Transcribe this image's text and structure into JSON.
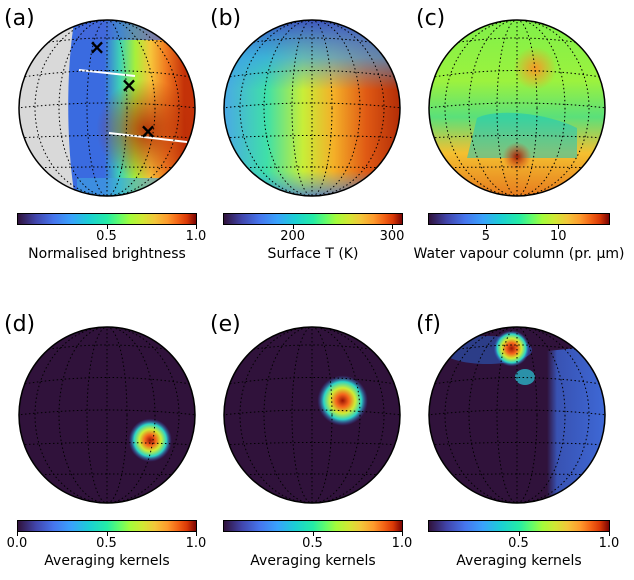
{
  "panels": {
    "a": "(a)",
    "b": "(b)",
    "c": "(c)",
    "d": "(d)",
    "e": "(e)",
    "f": "(f)"
  },
  "colorbars": {
    "a": {
      "title": "Normalised brightness",
      "ticks": [
        "0.5",
        "1.0"
      ],
      "tick_values": [
        0.5,
        1.0
      ],
      "range": [
        0.0,
        1.0
      ]
    },
    "b": {
      "title": "Surface T (K)",
      "ticks": [
        "200",
        "300"
      ],
      "tick_values": [
        200,
        300
      ],
      "range": [
        130,
        310
      ]
    },
    "c": {
      "title": "Water vapour column (pr. μm)",
      "ticks": [
        "5",
        "10"
      ],
      "tick_values": [
        5,
        10
      ],
      "range": [
        1,
        13.5
      ]
    },
    "d": {
      "title": "Averaging kernels",
      "ticks": [
        "0.0",
        "0.5",
        "1.0"
      ],
      "tick_values": [
        0.0,
        0.5,
        1.0
      ],
      "range": [
        0.0,
        1.0
      ]
    },
    "e": {
      "title": "Averaging kernels",
      "ticks": [
        "0.5",
        "1.0"
      ],
      "tick_values": [
        0.5,
        1.0
      ],
      "range": [
        0.0,
        1.0
      ]
    },
    "f": {
      "title": "Averaging kernels",
      "ticks": [
        "0.5",
        "1.0"
      ],
      "tick_values": [
        0.5,
        1.0
      ],
      "range": [
        0.0,
        1.0
      ]
    }
  },
  "colormap": "turbo",
  "colors": {
    "night_side": "#d9d9d9",
    "kernel_background": "#30123b",
    "grid": "#000000"
  },
  "markers": {
    "symbol": "×",
    "count": 3
  }
}
